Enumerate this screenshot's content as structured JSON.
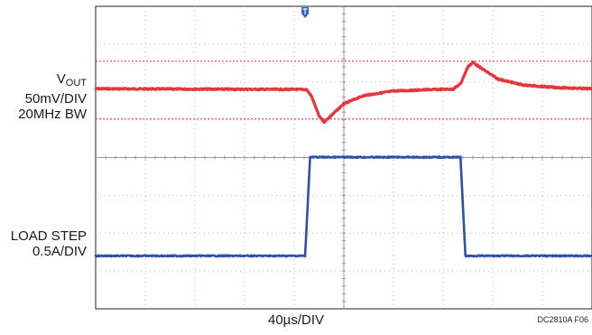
{
  "chart_data": {
    "type": "line",
    "xlabel": "40µs/DIV",
    "figure_id": "DC2810A F06",
    "x_divisions": 10,
    "y_divisions": 8,
    "trigger_marker_x_div": 4.22,
    "series": [
      {
        "name": "V_OUT",
        "label_lines": [
          "V",
          "OUT",
          "50mV/DIV",
          "20MHz BW"
        ],
        "color": "#e8353a",
        "baseline_div": 2.18,
        "limit_lines_div": [
          1.45,
          2.98
        ],
        "points_div": [
          [
            0,
            2.18
          ],
          [
            4.25,
            2.2
          ],
          [
            4.35,
            2.38
          ],
          [
            4.5,
            2.9
          ],
          [
            4.6,
            3.06
          ],
          [
            4.72,
            2.92
          ],
          [
            5.0,
            2.58
          ],
          [
            5.4,
            2.36
          ],
          [
            6.0,
            2.24
          ],
          [
            6.8,
            2.2
          ],
          [
            7.2,
            2.19
          ],
          [
            7.35,
            2.05
          ],
          [
            7.5,
            1.6
          ],
          [
            7.6,
            1.48
          ],
          [
            7.75,
            1.62
          ],
          [
            8.1,
            1.92
          ],
          [
            8.6,
            2.08
          ],
          [
            9.3,
            2.15
          ],
          [
            10.0,
            2.18
          ]
        ]
      },
      {
        "name": "LOAD STEP",
        "label_lines": [
          "LOAD STEP",
          "0.5A/DIV"
        ],
        "color": "#2f4fa8",
        "points_div": [
          [
            0,
            6.6
          ],
          [
            4.22,
            6.6
          ],
          [
            4.32,
            3.99
          ],
          [
            7.35,
            3.99
          ],
          [
            7.45,
            6.6
          ],
          [
            10.0,
            6.6
          ]
        ]
      }
    ]
  }
}
